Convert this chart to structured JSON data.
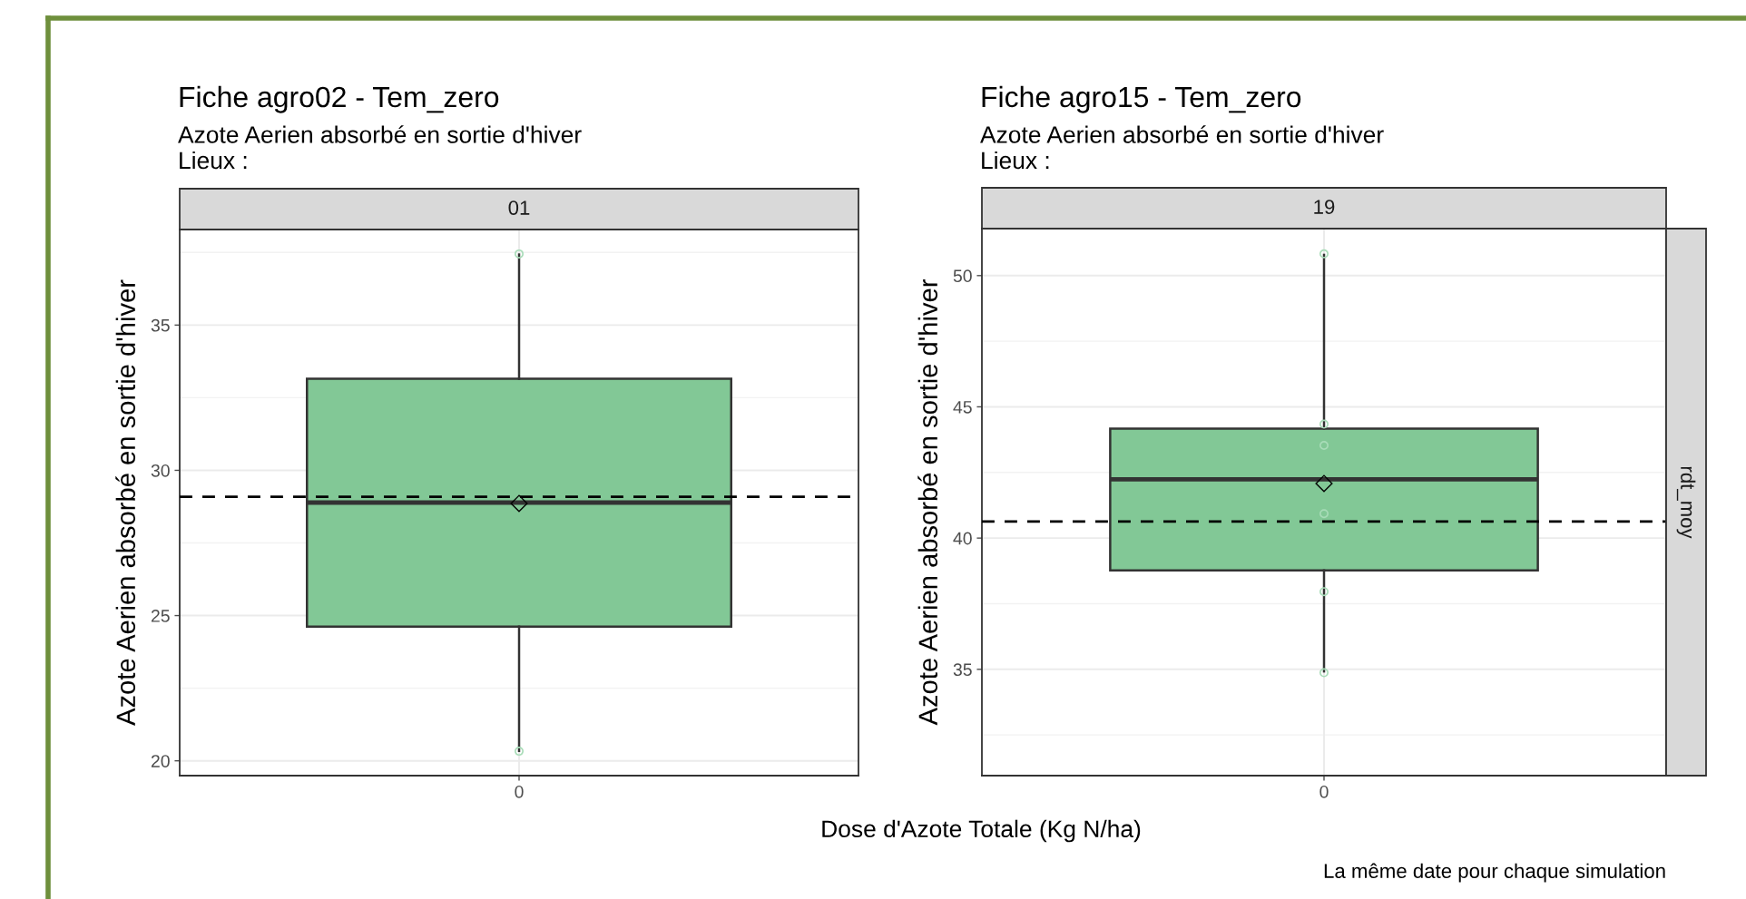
{
  "chart_data": [
    {
      "type": "box",
      "title": "Fiche agro02 - Tem_zero",
      "subtitle": "Azote Aerien absorbé en sortie d'hiver\nLieux :",
      "ylabel": "Azote Aerien absorbé en sortie d'hiver",
      "xlabel": "Dose d'Azote Totale (Kg N/ha)",
      "categories": [
        "0"
      ],
      "ylim": [
        19.49,
        38.29
      ],
      "yticks": [
        20,
        25,
        30,
        35
      ],
      "grid": true,
      "marker": "circle",
      "series": [
        {
          "type": "box",
          "color": "#82c896",
          "boxes": [
            {
              "low": 20.34,
              "q1": 24.62,
              "median": 28.89,
              "q3": 33.15,
              "high": 37.43,
              "mean": 28.86
            }
          ]
        },
        {
          "type": "scatter",
          "color": "#a8dcb8",
          "x": [
            "0",
            "0"
          ],
          "values": [
            37.45,
            20.33
          ]
        }
      ],
      "ref_lines": [
        {
          "axis": "y",
          "value": 29.09,
          "color": "#000000",
          "line_style": "dashed"
        }
      ],
      "annotations": [
        "01"
      ]
    },
    {
      "type": "box",
      "title": "Fiche agro15 - Tem_zero",
      "subtitle": "Azote Aerien absorbé en sortie d'hiver\nLieux :",
      "ylabel": "Azote Aerien absorbé en sortie d'hiver",
      "categories": [
        "0"
      ],
      "ylim": [
        30.95,
        51.79
      ],
      "yticks": [
        35,
        40,
        45,
        50
      ],
      "grid": true,
      "marker": "circle",
      "series": [
        {
          "type": "box",
          "color": "#82c896",
          "boxes": [
            {
              "low": 34.92,
              "q1": 38.77,
              "median": 42.24,
              "q3": 44.17,
              "high": 50.79,
              "mean": 42.08
            }
          ]
        },
        {
          "type": "scatter",
          "color": "#a8dcb8",
          "x": [
            "0",
            "0",
            "0",
            "0",
            "0",
            "0"
          ],
          "values": [
            50.83,
            44.34,
            43.53,
            40.93,
            37.96,
            34.87
          ]
        }
      ],
      "ref_lines": [
        {
          "axis": "y",
          "value": 40.63,
          "color": "#000000",
          "line_style": "dashed"
        }
      ],
      "annotations": [
        "19",
        "rdt_moy",
        "La même date pour chaque simulation"
      ]
    }
  ]
}
